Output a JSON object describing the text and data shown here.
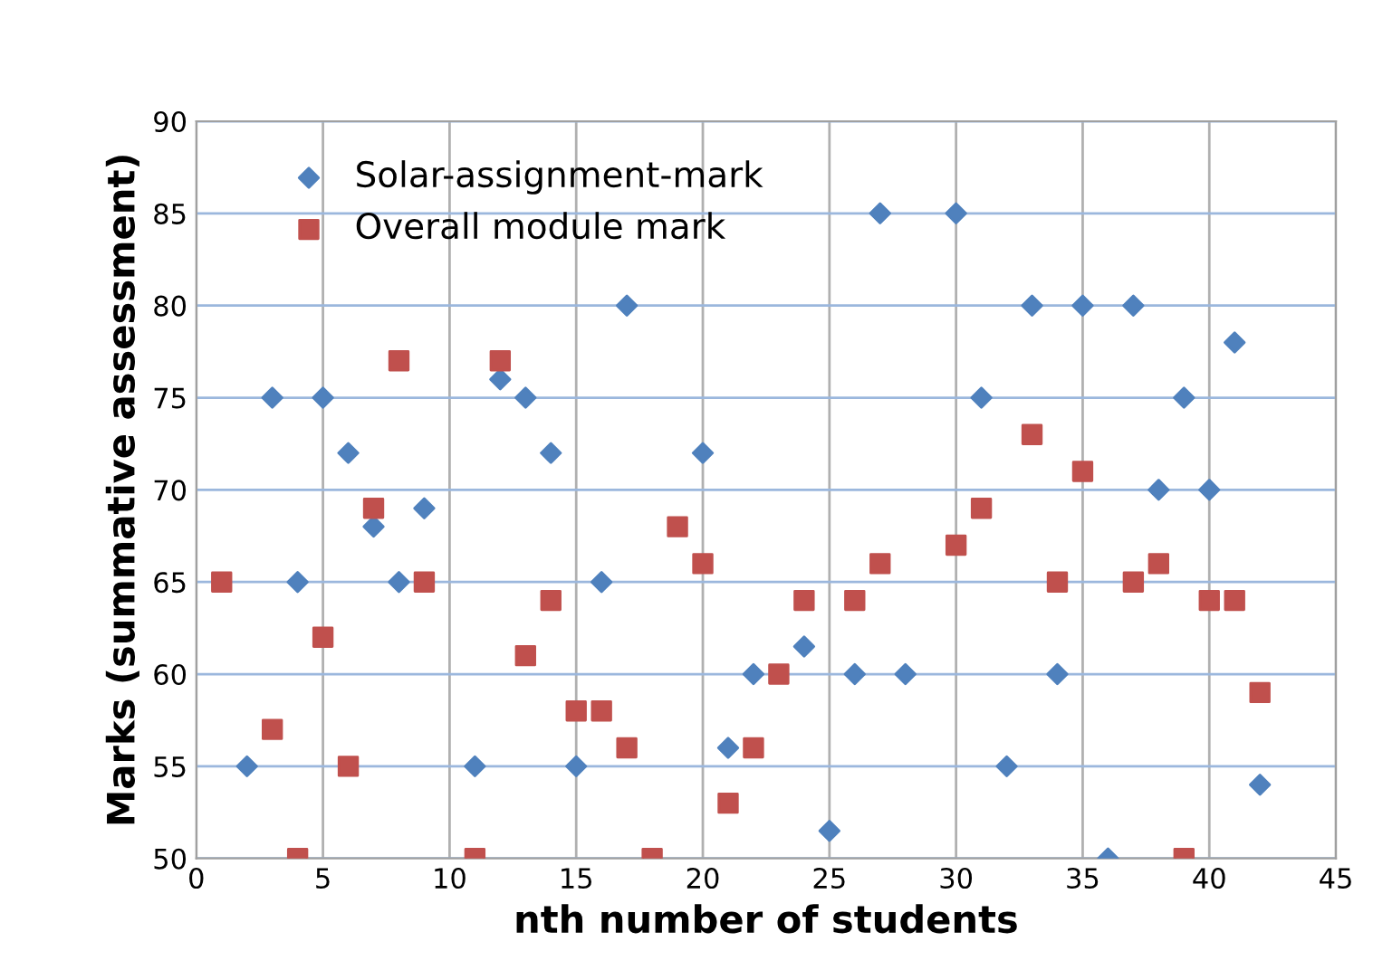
{
  "chart_data": {
    "type": "scatter",
    "xlabel": "nth number of students",
    "ylabel": "Marks (summative assessment)",
    "xlim": [
      0,
      45
    ],
    "xticks": [
      0,
      5,
      10,
      15,
      20,
      25,
      30,
      35,
      40,
      45
    ],
    "ylim": [
      50,
      90
    ],
    "yticks": [
      50,
      55,
      60,
      65,
      70,
      75,
      80,
      85,
      90
    ],
    "grid": true,
    "legend": "top left",
    "series": [
      {
        "name": "Solar-assignment-mark",
        "color": "#4f81bd",
        "marker": "diamond",
        "x": [
          2,
          3,
          4,
          5,
          6,
          7,
          8,
          9,
          11,
          12,
          13,
          14,
          15,
          16,
          17,
          20,
          21,
          22,
          24,
          25,
          26,
          27,
          28,
          30,
          31,
          32,
          33,
          34,
          35,
          36,
          37,
          38,
          39,
          40,
          41,
          42
        ],
        "values": [
          55,
          75,
          65,
          75,
          72,
          68,
          65,
          69,
          55,
          76,
          75,
          72,
          55,
          65,
          80,
          72,
          56,
          60,
          61.5,
          51.5,
          60,
          85,
          60,
          85,
          75,
          55,
          80,
          60,
          80,
          50,
          80,
          70,
          75,
          70,
          78,
          54
        ]
      },
      {
        "name": "Overall module mark",
        "color": "#c0504d",
        "marker": "square",
        "x": [
          1,
          3,
          4,
          5,
          6,
          7,
          8,
          9,
          11,
          12,
          13,
          14,
          15,
          16,
          17,
          18,
          19,
          20,
          21,
          22,
          23,
          24,
          26,
          27,
          30,
          31,
          33,
          34,
          35,
          37,
          38,
          39,
          40,
          41,
          42
        ],
        "values": [
          65,
          57,
          50,
          62,
          55,
          69,
          77,
          65,
          50,
          77,
          61,
          64,
          58,
          58,
          56,
          50,
          68,
          66,
          53,
          56,
          60,
          64,
          64,
          66,
          67,
          69,
          73,
          65,
          71,
          65,
          66,
          50,
          64,
          64,
          59
        ]
      }
    ]
  }
}
